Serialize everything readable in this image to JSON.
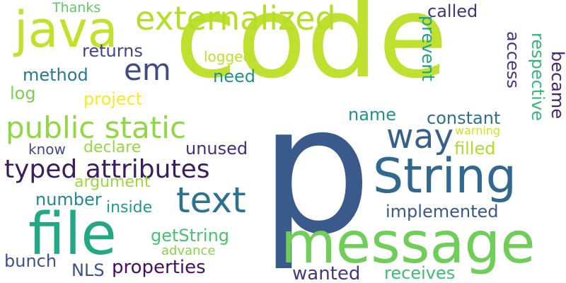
{
  "words": [
    {
      "text": "code",
      "color": "#bfe02e"
    },
    {
      "text": "p",
      "color": "#3a5a8c"
    },
    {
      "text": "message",
      "color": "#6ece58"
    },
    {
      "text": "String",
      "color": "#31688e"
    },
    {
      "text": "file",
      "color": "#22a884"
    },
    {
      "text": "java",
      "color": "#c3e02a"
    },
    {
      "text": "externalized",
      "color": "#b5de2b"
    },
    {
      "text": "text",
      "color": "#2c728e"
    },
    {
      "text": "way",
      "color": "#355f8d"
    },
    {
      "text": "public static",
      "color": "#8fd744"
    },
    {
      "text": "typed attributes",
      "color": "#3b1c5e"
    },
    {
      "text": "em",
      "color": "#3e4a89"
    },
    {
      "text": "called",
      "color": "#3b3a7b"
    },
    {
      "text": "Thanks",
      "color": "#5ec962"
    },
    {
      "text": "returns",
      "color": "#414487"
    },
    {
      "text": "logged",
      "color": "#bddf26"
    },
    {
      "text": "method",
      "color": "#2a788e"
    },
    {
      "text": "need",
      "color": "#21918c"
    },
    {
      "text": "log",
      "color": "#7ad151"
    },
    {
      "text": "project",
      "color": "#fde725"
    },
    {
      "text": "prevent",
      "color": "#1fa187"
    },
    {
      "text": "access",
      "color": "#46337e"
    },
    {
      "text": "respective",
      "color": "#35b779"
    },
    {
      "text": "became",
      "color": "#481f71"
    },
    {
      "text": "name",
      "color": "#1f948c"
    },
    {
      "text": "constant",
      "color": "#2e6e8e"
    },
    {
      "text": "warning",
      "color": "#d2e21b"
    },
    {
      "text": "filled",
      "color": "#addc30"
    },
    {
      "text": "know",
      "color": "#3f4788"
    },
    {
      "text": "declare",
      "color": "#95d840"
    },
    {
      "text": "unused",
      "color": "#472c7a"
    },
    {
      "text": "argument",
      "color": "#9bd93c"
    },
    {
      "text": "number",
      "color": "#24868e"
    },
    {
      "text": "inside",
      "color": "#1e9b8a"
    },
    {
      "text": "implemented",
      "color": "#38598c"
    },
    {
      "text": "getString",
      "color": "#4ac16d"
    },
    {
      "text": "advance",
      "color": "#86d549"
    },
    {
      "text": "bunch",
      "color": "#3b528b"
    },
    {
      "text": "NLS",
      "color": "#3c508b"
    },
    {
      "text": "properties",
      "color": "#440f5d"
    },
    {
      "text": "wanted",
      "color": "#453882"
    },
    {
      "text": "receives",
      "color": "#3dbc74"
    }
  ]
}
